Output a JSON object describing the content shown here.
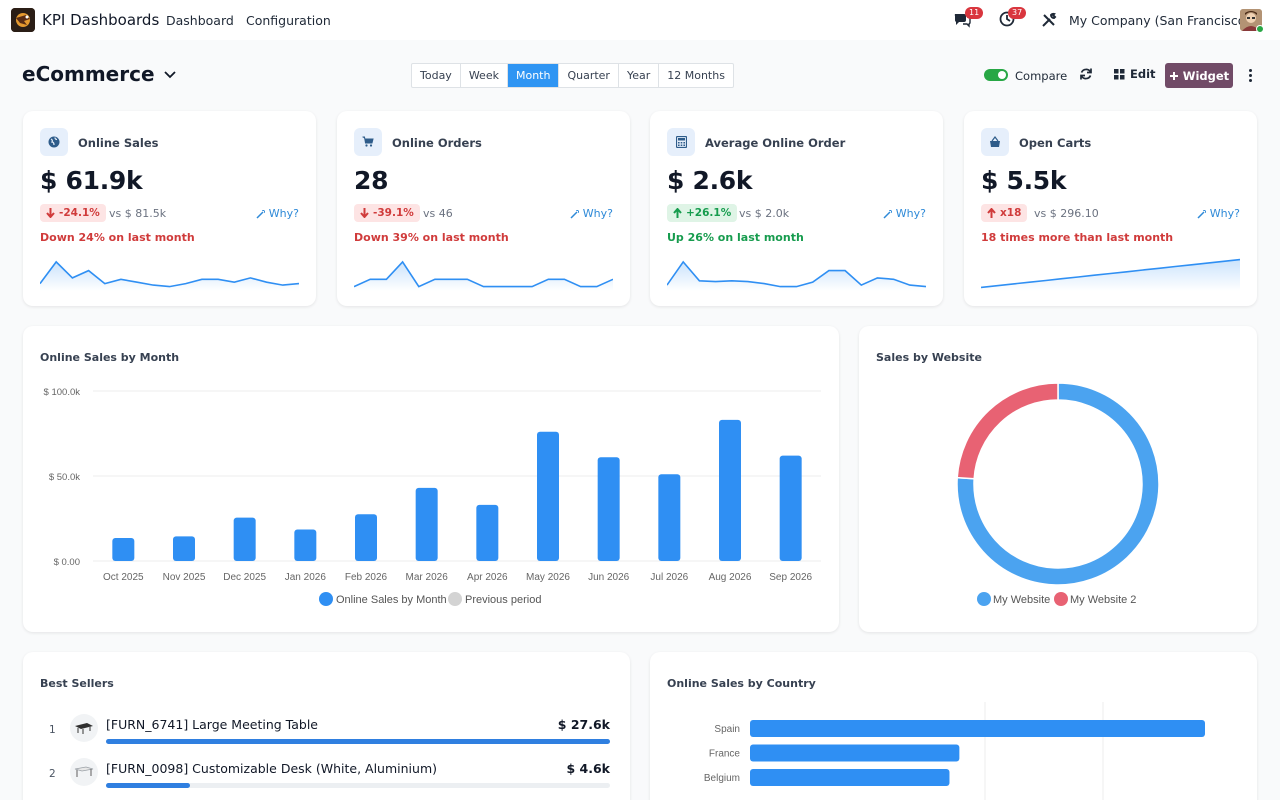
{
  "navbar": {
    "app_title": "KPI Dashboards",
    "menu": [
      "Dashboard",
      "Configuration"
    ],
    "messages_count": "11",
    "activities_count": "37",
    "company": "My Company (San Francisco)"
  },
  "controls": {
    "dashboard_title": "eCommerce",
    "periods": [
      "Today",
      "Week",
      "Month",
      "Quarter",
      "Year",
      "12 Months"
    ],
    "active_period": "Month",
    "compare_label": "Compare",
    "compare_on": true,
    "edit_label": "Edit",
    "widget_label": "Widget"
  },
  "kpis": [
    {
      "title": "Online Sales",
      "icon": "globe-icon",
      "value": "$ 61.9k",
      "delta": "-24.1%",
      "direction": "down",
      "vs": "vs $ 81.5k",
      "why": "Why?",
      "trend": "Down 24% on last month",
      "spark": [
        0.15,
        0.9,
        0.35,
        0.6,
        0.15,
        0.3,
        0.2,
        0.1,
        0.05,
        0.15,
        0.3,
        0.3,
        0.2,
        0.35,
        0.2,
        0.1,
        0.15
      ]
    },
    {
      "title": "Online Orders",
      "icon": "cart-icon",
      "value": "28",
      "delta": "-39.1%",
      "direction": "down",
      "vs": "vs 46",
      "why": "Why?",
      "trend": "Down 39% on last month",
      "spark": [
        0.05,
        0.3,
        0.3,
        0.9,
        0.05,
        0.3,
        0.3,
        0.3,
        0.05,
        0.05,
        0.05,
        0.05,
        0.3,
        0.3,
        0.05,
        0.05,
        0.3
      ]
    },
    {
      "title": "Average Online Order",
      "icon": "calculator-icon",
      "value": "$ 2.6k",
      "delta": "+26.1%",
      "direction": "up",
      "vs": "vs $ 2.0k",
      "why": "Why?",
      "trend": "Up 26% on last month",
      "spark": [
        0.1,
        0.9,
        0.25,
        0.22,
        0.25,
        0.22,
        0.15,
        0.05,
        0.05,
        0.2,
        0.6,
        0.6,
        0.1,
        0.35,
        0.3,
        0.1,
        0.05
      ]
    },
    {
      "title": "Open Carts",
      "icon": "basket-icon",
      "value": "$ 5.5k",
      "delta": "x18",
      "direction": "up-neg",
      "vs": "vs $ 296.10",
      "why": "Why?",
      "trend": "18 times more than last month",
      "spark": [
        0.02,
        0.08,
        0.14,
        0.2,
        0.26,
        0.32,
        0.38,
        0.44,
        0.5,
        0.56,
        0.62,
        0.68,
        0.74,
        0.8,
        0.86,
        0.92,
        0.98
      ]
    }
  ],
  "monthly_chart": {
    "section_title": "Online Sales by Month",
    "chart_data": {
      "type": "bar",
      "categories": [
        "Oct 2025",
        "Nov 2025",
        "Dec 2025",
        "Jan 2026",
        "Feb 2026",
        "Mar 2026",
        "Apr 2026",
        "May 2026",
        "Jun 2026",
        "Jul 2026",
        "Aug 2026",
        "Sep 2026"
      ],
      "series": [
        {
          "name": "Online Sales by Month",
          "values": [
            13.5,
            14.5,
            25.5,
            18.5,
            27.5,
            43,
            33,
            76,
            61,
            51,
            83,
            62
          ]
        }
      ],
      "y_ticks": [
        "$ 0.00",
        "$ 50.0k",
        "$ 100.0k"
      ],
      "ylim": [
        0,
        100
      ],
      "legend": [
        "Online Sales by Month",
        "Previous period"
      ],
      "colors": {
        "current": "#2f8ff3",
        "previous": "#d3d3d3"
      }
    }
  },
  "website_chart": {
    "section_title": "Sales by Website",
    "chart_data": {
      "type": "pie",
      "labels": [
        "My Website",
        "My Website 2"
      ],
      "values": [
        76,
        24
      ],
      "colors": [
        "#4ba3f0",
        "#e86273"
      ]
    }
  },
  "best_sellers": {
    "section_title": "Best Sellers",
    "items": [
      {
        "rank": "1",
        "name": "[FURN_6741] Large Meeting Table",
        "amount": "$ 27.6k",
        "share": 1.0
      },
      {
        "rank": "2",
        "name": "[FURN_0098] Customizable Desk (White, Aluminium)",
        "amount": "$ 4.6k",
        "share": 0.166
      }
    ]
  },
  "country_chart": {
    "section_title": "Online Sales by Country",
    "chart_data": {
      "type": "bar",
      "orientation": "horizontal",
      "categories": [
        "Spain",
        "France",
        "Belgium"
      ],
      "values": [
        27.6,
        12.7,
        12.1
      ],
      "color": "#2f8ff3"
    }
  }
}
